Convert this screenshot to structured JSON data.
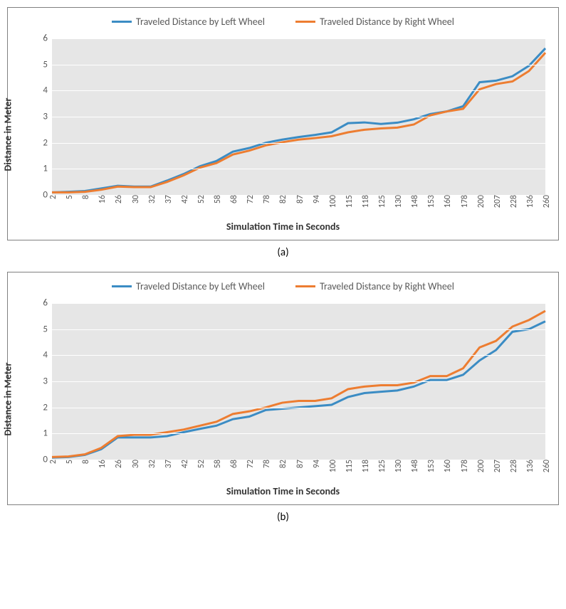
{
  "chart_a": {
    "type": "line",
    "subplot_label": "(a)",
    "legend": [
      {
        "label": "Traveled Distance by Left Wheel",
        "color": "#3b8cc4"
      },
      {
        "label": "Traveled Distance by Right Wheel",
        "color": "#ed7d31"
      }
    ],
    "ylabel": "Distance in Meter",
    "xlabel": "Simulation Time in Seconds",
    "ylim": [
      0,
      6
    ],
    "ytick_step": 1,
    "grid_color": "#ffffff",
    "background_color": "#e6e6e6",
    "tick_fontsize": 13,
    "label_fontsize": 14,
    "line_width": 3,
    "categories": [
      "2",
      "5",
      "8",
      "16",
      "26",
      "30",
      "32",
      "37",
      "42",
      "52",
      "58",
      "68",
      "72",
      "78",
      "82",
      "87",
      "94",
      "100",
      "115",
      "118",
      "125",
      "130",
      "148",
      "153",
      "160",
      "178",
      "200",
      "207",
      "228",
      "136",
      "260"
    ],
    "left_values": [
      0.1,
      0.12,
      0.15,
      0.25,
      0.35,
      0.32,
      0.32,
      0.55,
      0.8,
      1.1,
      1.3,
      1.66,
      1.8,
      2.0,
      2.12,
      2.22,
      2.3,
      2.4,
      2.75,
      2.78,
      2.72,
      2.77,
      2.9,
      3.1,
      3.2,
      3.4,
      4.32,
      4.38,
      4.55,
      4.95,
      5.62
    ],
    "right_values": [
      0.1,
      0.1,
      0.12,
      0.2,
      0.32,
      0.3,
      0.3,
      0.5,
      0.75,
      1.05,
      1.22,
      1.55,
      1.7,
      1.9,
      2.02,
      2.12,
      2.18,
      2.25,
      2.4,
      2.5,
      2.55,
      2.58,
      2.7,
      3.05,
      3.2,
      3.3,
      4.05,
      4.25,
      4.35,
      4.75,
      5.45
    ]
  },
  "chart_b": {
    "type": "line",
    "subplot_label": "(b)",
    "legend": [
      {
        "label": "Traveled Distance by Left Wheel",
        "color": "#3b8cc4"
      },
      {
        "label": "Traveled Distance by Right Wheel",
        "color": "#ed7d31"
      }
    ],
    "ylabel": "Distance in Meter",
    "xlabel": "Simulation Time in Seconds",
    "ylim": [
      0,
      6
    ],
    "ytick_step": 1,
    "grid_color": "#ffffff",
    "background_color": "#e6e6e6",
    "tick_fontsize": 13,
    "label_fontsize": 14,
    "line_width": 3,
    "categories": [
      "2",
      "5",
      "8",
      "16",
      "26",
      "30",
      "32",
      "37",
      "42",
      "52",
      "58",
      "68",
      "72",
      "78",
      "82",
      "87",
      "94",
      "100",
      "115",
      "118",
      "125",
      "130",
      "148",
      "153",
      "160",
      "178",
      "200",
      "207",
      "228",
      "136",
      "260"
    ],
    "left_values": [
      0.08,
      0.1,
      0.18,
      0.4,
      0.85,
      0.85,
      0.85,
      0.9,
      1.05,
      1.18,
      1.3,
      1.55,
      1.65,
      1.9,
      1.95,
      2.0,
      2.05,
      2.1,
      2.4,
      2.55,
      2.6,
      2.65,
      2.8,
      3.05,
      3.05,
      3.25,
      3.8,
      4.2,
      4.9,
      5.0,
      5.3
    ],
    "right_values": [
      0.1,
      0.12,
      0.2,
      0.45,
      0.9,
      0.95,
      0.95,
      1.05,
      1.15,
      1.3,
      1.45,
      1.75,
      1.85,
      2.0,
      2.18,
      2.25,
      2.25,
      2.35,
      2.7,
      2.8,
      2.85,
      2.85,
      2.95,
      3.2,
      3.2,
      3.5,
      4.3,
      4.55,
      5.1,
      5.35,
      5.7
    ]
  }
}
